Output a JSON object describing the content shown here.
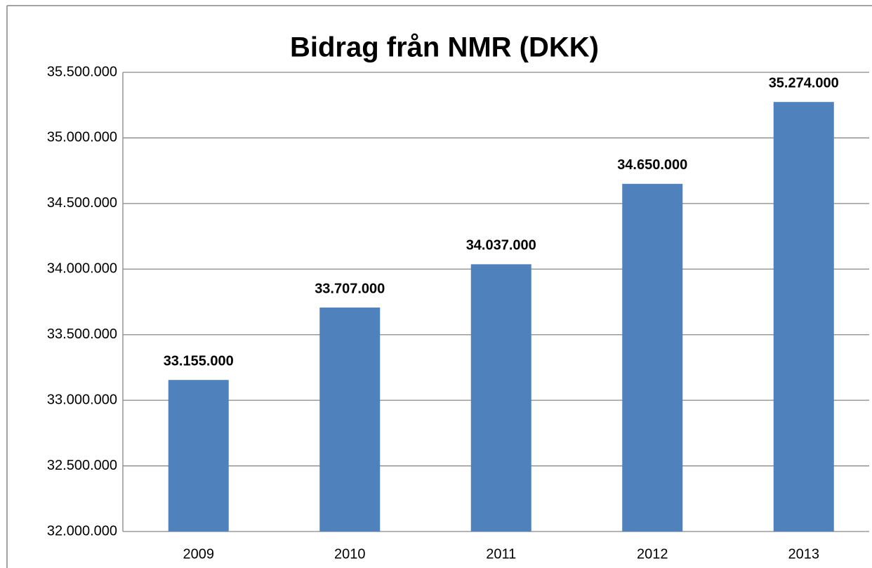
{
  "chart_data": {
    "type": "bar",
    "title": "Bidrag från NMR (DKK)",
    "categories": [
      "2009",
      "2010",
      "2011",
      "2012",
      "2013"
    ],
    "values": [
      33155000,
      33707000,
      34037000,
      34650000,
      35274000
    ],
    "value_labels": [
      "33.155.000",
      "33.707.000",
      "34.037.000",
      "34.650.000",
      "35.274.000"
    ],
    "color": "#4f81bd",
    "ylim": [
      32000000,
      35500000
    ],
    "yticks": [
      {
        "value": 32000000,
        "label": "32.000.000"
      },
      {
        "value": 32500000,
        "label": "32.500.000"
      },
      {
        "value": 33000000,
        "label": "33.000.000"
      },
      {
        "value": 33500000,
        "label": "33.500.000"
      },
      {
        "value": 34000000,
        "label": "34.000.000"
      },
      {
        "value": 34500000,
        "label": "34.500.000"
      },
      {
        "value": 35000000,
        "label": "35.000.000"
      },
      {
        "value": 35500000,
        "label": "35.500.000"
      }
    ],
    "grid": true
  }
}
